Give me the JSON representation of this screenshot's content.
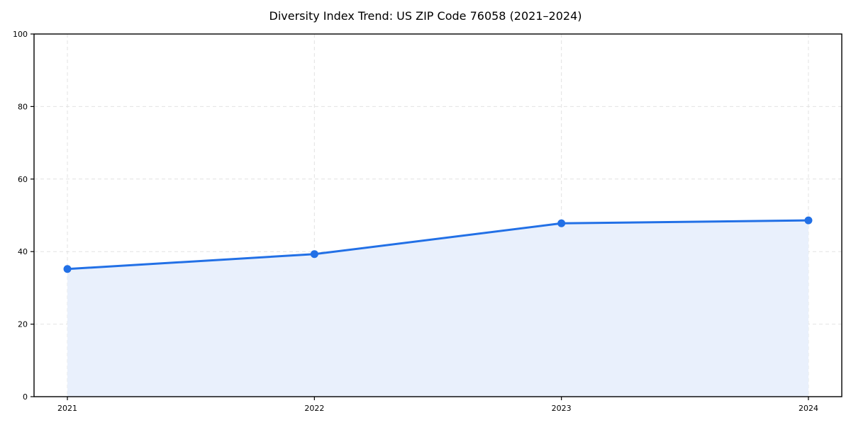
{
  "chart_data": {
    "type": "area",
    "title": "Diversity Index Trend: US ZIP Code 76058 (2021–2024)",
    "categories": [
      "2021",
      "2022",
      "2023",
      "2024"
    ],
    "series": [
      {
        "name": "Diversity Index",
        "values": [
          35.2,
          39.3,
          47.8,
          48.6
        ]
      }
    ],
    "xlabel": "",
    "ylabel": "",
    "ylim": [
      0,
      100
    ],
    "yticks": [
      0,
      20,
      40,
      60,
      80,
      100
    ],
    "grid": "dashed, horizontal and vertical at ticks",
    "legend": "none",
    "colors": {
      "line": "#2270e6",
      "marker": "#2270e6",
      "fill": "#e9f0fc",
      "grid": "#e2e2e2",
      "spine": "#000000",
      "tick_text": "#000000",
      "background": "#ffffff"
    }
  }
}
